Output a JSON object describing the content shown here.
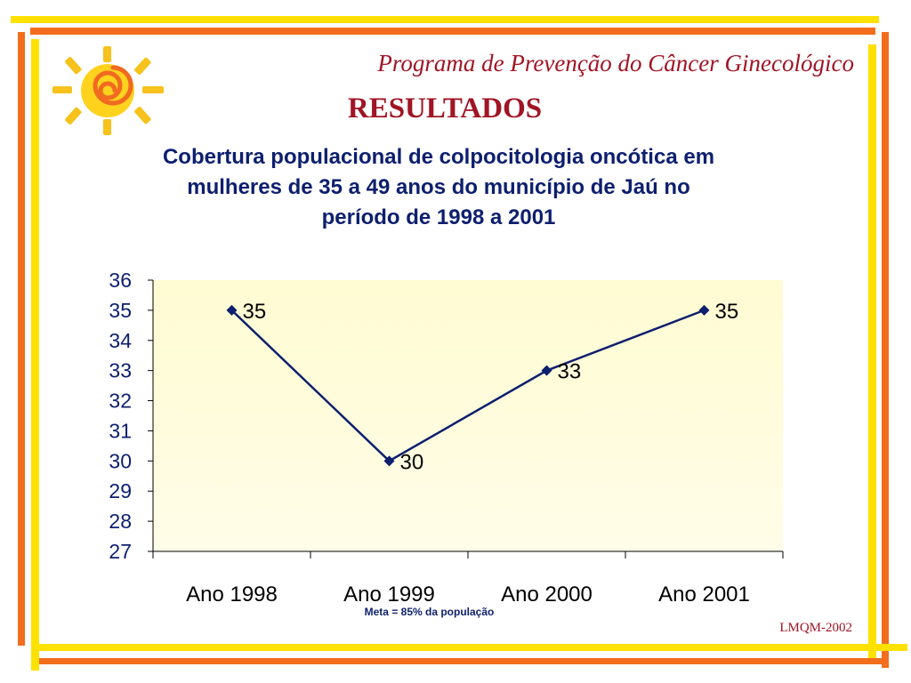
{
  "header": {
    "program_title": "Programa de Prevenção do Câncer Ginecológico",
    "section_title": "RESULTADOS"
  },
  "colors": {
    "frame_yellow": "#ffe100",
    "frame_orange": "#f26e1d",
    "title_red": "#a01424",
    "series_navy": "#0d1f6e",
    "plot_bg_top": "#fffbd2",
    "plot_bg_bottom": "#fffde8"
  },
  "logo": {
    "icon": "sun-spiral-icon"
  },
  "chart_data": {
    "type": "line",
    "title": "Cobertura populacional de colpocitologia oncótica em mulheres de 35 a 49 anos do município de Jaú no período de 1998 a 2001",
    "categories": [
      "Ano 1998",
      "Ano 1999",
      "Ano 2000",
      "Ano 2001"
    ],
    "values": [
      35,
      30,
      33,
      35
    ],
    "data_labels": [
      "35",
      "30",
      "33",
      "35"
    ],
    "ylim": [
      27,
      36
    ],
    "yticks": [
      36,
      35,
      34,
      33,
      32,
      31,
      30,
      29,
      28,
      27
    ],
    "xlabel": "",
    "ylabel": "",
    "grid": false,
    "legend": "none",
    "note": "Meta = 85% da população"
  },
  "footer": {
    "credit": "LMQM-2002"
  }
}
